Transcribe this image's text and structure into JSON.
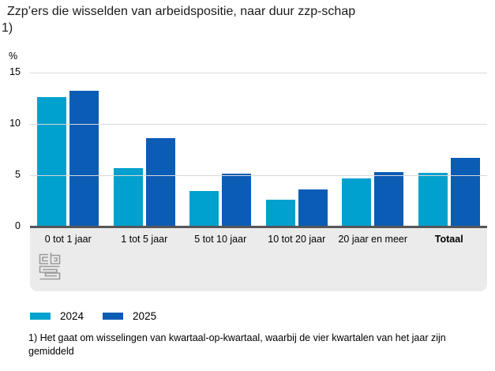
{
  "header": {
    "title_line1": "Zzp’ers die wisselden van arbeidspositie, naar duur zzp-schap",
    "title_line2": "1)"
  },
  "chart_data": {
    "type": "bar",
    "title": "Zzp’ers die wisselden van arbeidspositie, naar duur zzp-schap 1)",
    "ylabel": "%",
    "ylim": [
      0,
      15
    ],
    "yticks": [
      0,
      5,
      10,
      15
    ],
    "grid": "horizontal",
    "categories": [
      "0 tot 1 jaar",
      "1 tot 5 jaar",
      "5 tot 10 jaar",
      "10 tot 20 jaar",
      "20 jaar en meer",
      "Totaal"
    ],
    "bold_categories": [
      "Totaal"
    ],
    "series": [
      {
        "name": "2024",
        "color": "#00a1cd",
        "values": [
          12.6,
          5.7,
          3.4,
          2.6,
          4.7,
          5.2
        ]
      },
      {
        "name": "2025",
        "color": "#0b5cb5",
        "values": [
          13.2,
          8.6,
          5.1,
          3.6,
          5.3,
          6.7
        ]
      }
    ],
    "legend_position": "bottom-left"
  },
  "legend": {
    "items": [
      {
        "label": "2024",
        "color": "#00a1cd"
      },
      {
        "label": "2025",
        "color": "#0b5cb5"
      }
    ]
  },
  "footnote": {
    "line1": "1) Het gaat om wisselingen van kwartaal-op-kwartaal, waarbij de vier kwartalen van het jaar zijn",
    "line2": "gemiddeld"
  },
  "branding": {
    "logo": "cbs-logo"
  },
  "colors": {
    "axis": "#55565a",
    "gridline": "#d9d9d9",
    "band": "#ebebeb",
    "accent_light": "#00a1cd",
    "accent_dark": "#0b5cb5",
    "logo_grey": "#9b9b9b"
  }
}
